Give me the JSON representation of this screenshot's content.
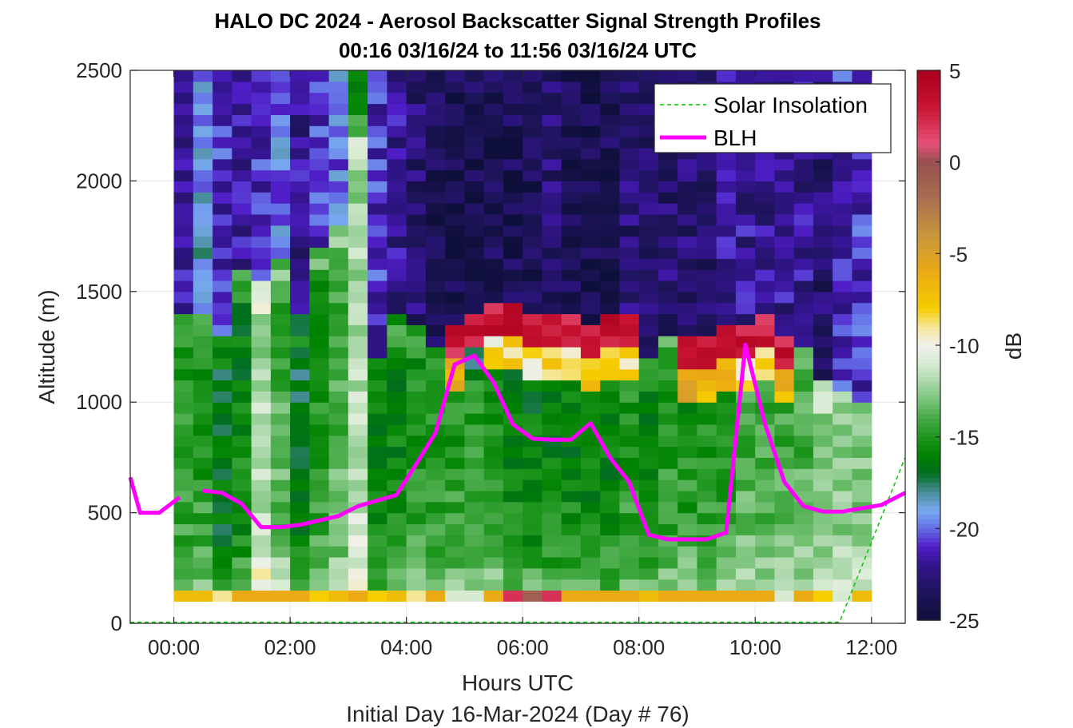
{
  "chart_data": {
    "type": "heatmap",
    "title": "HALO DC 2024 - Aerosol Backscatter Signal Strength Profiles",
    "subtitle": "00:16 03/16/24 to 11:56 03/16/24  UTC",
    "xlabel": "Hours UTC",
    "xlabel2": "Initial Day 16-Mar-2024 (Day # 76)",
    "ylabel": "Altitude (m)",
    "xlim": [
      -0.75,
      12.58
    ],
    "ylim": [
      0,
      2500
    ],
    "x_tick_labels": [
      "00:00",
      "02:00",
      "04:00",
      "06:00",
      "08:00",
      "10:00",
      "12:00"
    ],
    "y_tick_labels": [
      "0",
      "500",
      "1000",
      "1500",
      "2000",
      "2500"
    ],
    "grid": true,
    "colorbar": {
      "label": "dB",
      "range": [
        -25,
        5
      ],
      "tick_labels": [
        "5",
        "0",
        "-5",
        "-10",
        "-15",
        "-20",
        "-25"
      ]
    },
    "legend": {
      "placement": "top-right",
      "entries": [
        "Solar Insolation",
        "BLH"
      ]
    },
    "heatmap": {
      "x_start": 0.0,
      "col_width_h": 0.3333,
      "y_start": 100,
      "row_height_m": 50,
      "columns": [
        {
          "base": -14,
          "top_alt": 1400,
          "top_val": -4,
          "cloud": 0,
          "aloft": -22
        },
        {
          "base": -14,
          "top_alt": 1400,
          "top_val": -7,
          "cloud": 0,
          "aloft": -19
        },
        {
          "base": -16,
          "top_alt": 1300,
          "top_val": -3,
          "cloud": 0,
          "aloft": -21
        },
        {
          "base": -15,
          "top_alt": 1600,
          "top_val": -4,
          "cloud": 0,
          "aloft": -22
        },
        {
          "base": -11,
          "top_alt": 1550,
          "top_val": -6,
          "cloud": 0,
          "aloft": -21
        },
        {
          "base": -13,
          "top_alt": 1650,
          "top_val": 1,
          "cloud": 0,
          "aloft": -20
        },
        {
          "base": -16,
          "top_alt": 1400,
          "top_val": -19,
          "cloud": 0,
          "aloft": -22
        },
        {
          "base": -14,
          "top_alt": 1700,
          "top_val": -20,
          "cloud": 0,
          "aloft": -21
        },
        {
          "base": -13,
          "top_alt": 1800,
          "top_val": -20,
          "cloud": 0,
          "aloft": -20
        },
        {
          "base": -11,
          "top_alt": 2200,
          "top_val": -17,
          "cloud": 0,
          "aloft": -15
        },
        {
          "base": -15,
          "top_alt": 1200,
          "top_val": -20,
          "cloud": 0,
          "aloft": -21
        },
        {
          "base": -15,
          "top_alt": 1400,
          "top_val": -21,
          "cloud": 0,
          "aloft": -22
        },
        {
          "base": -14,
          "top_alt": 1350,
          "top_val": -17,
          "cloud": 0,
          "aloft": -23
        },
        {
          "base": -14,
          "top_alt": 1250,
          "top_val": -9,
          "cloud": 0,
          "aloft": -24
        },
        {
          "base": -14,
          "top_alt": 1200,
          "top_val": -6,
          "cloud": 1,
          "aloft": -24
        },
        {
          "base": -14,
          "top_alt": 1250,
          "top_val": -17,
          "cloud": 1,
          "aloft": -24
        },
        {
          "base": -14,
          "top_alt": 1300,
          "top_val": -9,
          "cloud": 1,
          "aloft": -24
        },
        {
          "base": -15,
          "top_alt": 1300,
          "top_val": -8,
          "cloud": 1,
          "aloft": -24
        },
        {
          "base": -15,
          "top_alt": 1250,
          "top_val": -9,
          "cloud": 1,
          "aloft": -24
        },
        {
          "base": -15,
          "top_alt": 1250,
          "top_val": -8,
          "cloud": 1,
          "aloft": -23
        },
        {
          "base": -15,
          "top_alt": 1250,
          "top_val": -9,
          "cloud": 1,
          "aloft": -24
        },
        {
          "base": -15,
          "top_alt": 1200,
          "top_val": -8,
          "cloud": 1,
          "aloft": -24
        },
        {
          "base": -15,
          "top_alt": 1250,
          "top_val": -7,
          "cloud": 1,
          "aloft": -24
        },
        {
          "base": -14,
          "top_alt": 1250,
          "top_val": -9,
          "cloud": 1,
          "aloft": -23
        },
        {
          "base": -15,
          "top_alt": 1200,
          "top_val": -11,
          "cloud": 0,
          "aloft": -23
        },
        {
          "base": -14,
          "top_alt": 1300,
          "top_val": -6,
          "cloud": 0,
          "aloft": -23
        },
        {
          "base": -14,
          "top_alt": 1150,
          "top_val": -6,
          "cloud": 1,
          "aloft": -23
        },
        {
          "base": -14,
          "top_alt": 1150,
          "top_val": -7,
          "cloud": 1,
          "aloft": -23
        },
        {
          "base": -14,
          "top_alt": 1200,
          "top_val": -7,
          "cloud": 1,
          "aloft": -22
        },
        {
          "base": -13,
          "top_alt": 1200,
          "top_val": -9,
          "cloud": 1,
          "aloft": -22
        },
        {
          "base": -13,
          "top_alt": 1250,
          "top_val": -9,
          "cloud": 1,
          "aloft": -22
        },
        {
          "base": -13,
          "top_alt": 1150,
          "top_val": -7,
          "cloud": 1,
          "aloft": -22
        },
        {
          "base": -13,
          "top_alt": 1250,
          "top_val": -16,
          "cloud": 0,
          "aloft": -22
        },
        {
          "base": -12,
          "top_alt": 1100,
          "top_val": -14,
          "cloud": 0,
          "aloft": -23
        },
        {
          "base": -12,
          "top_alt": 1050,
          "top_val": -18,
          "cloud": 0,
          "aloft": -21
        },
        {
          "base": -12,
          "top_alt": 1000,
          "top_val": -18,
          "cloud": 0,
          "aloft": -21
        }
      ],
      "ground_row_values": [
        -7,
        -7,
        -9,
        -6,
        -6,
        -6,
        -6,
        -8,
        -7,
        -6,
        -8,
        -7,
        -9,
        -6,
        -11,
        -11,
        -6,
        2,
        -1,
        2,
        -6,
        -6,
        -6,
        -6,
        -7,
        -6,
        -6,
        -6,
        -6,
        -6,
        -6,
        -11,
        -6,
        -8,
        -11,
        -7
      ]
    },
    "series": [
      {
        "name": "BLH",
        "color": "#ff00ff",
        "segments": [
          {
            "x": [
              -0.75,
              -0.58,
              -0.25,
              0.1
            ],
            "y": [
              660,
              500,
              500,
              570
            ]
          },
          {
            "x": [
              0.5,
              0.83,
              1.17,
              1.5,
              1.83,
              2.17,
              2.5,
              2.83,
              3.17,
              3.5,
              3.83,
              4.17,
              4.5,
              4.83,
              5.17,
              5.5,
              5.83,
              6.17,
              6.5,
              6.83,
              7.17,
              7.5,
              7.83,
              8.17,
              8.5,
              8.83,
              9.17,
              9.5,
              9.83,
              10.17,
              10.5,
              10.83,
              11.17,
              11.5,
              11.83,
              12.17,
              12.58
            ],
            "y": [
              600,
              590,
              540,
              435,
              435,
              445,
              465,
              485,
              530,
              555,
              580,
              720,
              860,
              1170,
              1210,
              1090,
              900,
              835,
              830,
              830,
              905,
              750,
              640,
              400,
              380,
              380,
              380,
              410,
              1260,
              900,
              640,
              530,
              505,
              505,
              520,
              535,
              590
            ]
          }
        ]
      },
      {
        "name": "Solar Insolation",
        "color": "#00c800",
        "style": "dashed",
        "x": [
          -0.75,
          11.45,
          12.58
        ],
        "y": [
          5,
          5,
          750
        ]
      }
    ]
  }
}
